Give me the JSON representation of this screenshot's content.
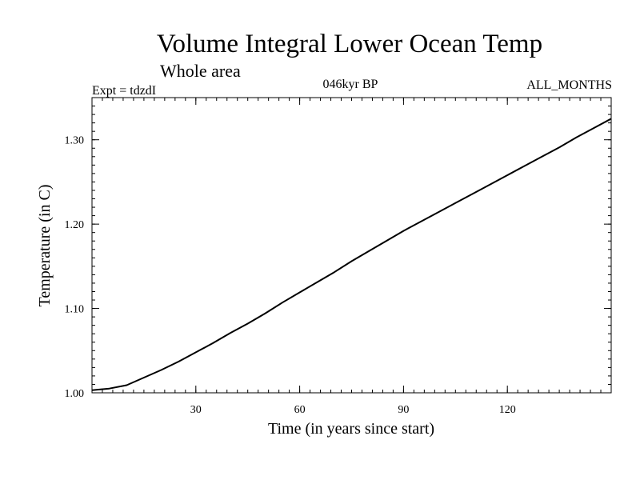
{
  "chart_data": {
    "type": "line",
    "title": "Volume Integral Lower Ocean Temp",
    "subtitle": "Whole area",
    "expt_label": "Expt = tdzdI",
    "period_label": "046kyr BP",
    "months_label": "ALL_MONTHS",
    "xlabel": "Time (in years since start)",
    "ylabel": "Temperature (in C)",
    "xlim": [
      0,
      150
    ],
    "ylim": [
      1.0,
      1.35
    ],
    "x_ticks": [
      30,
      60,
      90,
      120
    ],
    "x_tick_labels": [
      "30",
      "60",
      "90",
      "120"
    ],
    "y_ticks": [
      1.0,
      1.1,
      1.2,
      1.3
    ],
    "y_tick_labels": [
      "1.00",
      "1.10",
      "1.20",
      "1.30"
    ],
    "line_color": "#000000",
    "series": [
      {
        "name": "Temperature",
        "x": [
          0,
          5,
          10,
          15,
          20,
          25,
          30,
          35,
          40,
          45,
          50,
          55,
          60,
          65,
          70,
          75,
          80,
          85,
          90,
          95,
          100,
          105,
          110,
          115,
          120,
          125,
          130,
          135,
          140,
          145,
          150
        ],
        "values": [
          1.003,
          1.005,
          1.009,
          1.018,
          1.027,
          1.037,
          1.048,
          1.059,
          1.071,
          1.082,
          1.094,
          1.107,
          1.119,
          1.131,
          1.143,
          1.156,
          1.168,
          1.18,
          1.192,
          1.203,
          1.214,
          1.225,
          1.236,
          1.247,
          1.258,
          1.269,
          1.28,
          1.291,
          1.303,
          1.314,
          1.325
        ]
      }
    ]
  }
}
